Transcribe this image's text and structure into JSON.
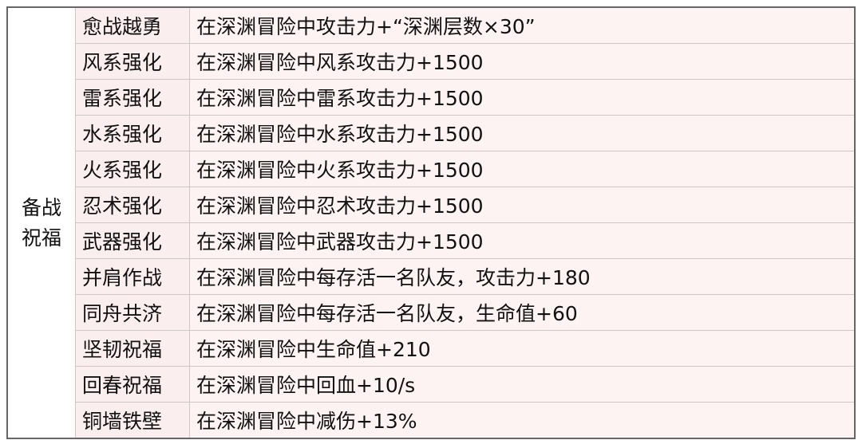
{
  "group_label_line1": "备战",
  "group_label_line2": "祝福",
  "rows": [
    {
      "name": "愈战越勇",
      "desc": "在深渊冒险中攻击力+“深渊层数×30”"
    },
    {
      "name": "风系强化",
      "desc": "在深渊冒险中风系攻击力+1500"
    },
    {
      "name": "雷系强化",
      "desc": "在深渊冒险中雷系攻击力+1500"
    },
    {
      "name": "水系强化",
      "desc": "在深渊冒险中水系攻击力+1500"
    },
    {
      "name": "火系强化",
      "desc": "在深渊冒险中火系攻击力+1500"
    },
    {
      "name": "忍术强化",
      "desc": "在深渊冒险中忍术攻击力+1500"
    },
    {
      "name": "武器强化",
      "desc": "在深渊冒险中武器攻击力+1500"
    },
    {
      "name": "并肩作战",
      "desc": "在深渊冒险中每存活一名队友，攻击力+180"
    },
    {
      "name": "同舟共济",
      "desc": "在深渊冒险中每存活一名队友，生命值+60"
    },
    {
      "name": "坚韧祝福",
      "desc": "在深渊冒险中生命值+210"
    },
    {
      "name": "回春祝福",
      "desc": "在深渊冒险中回血+10/s"
    },
    {
      "name": "铜墙铁壁",
      "desc": "在深渊冒险中减伤+13%"
    }
  ]
}
